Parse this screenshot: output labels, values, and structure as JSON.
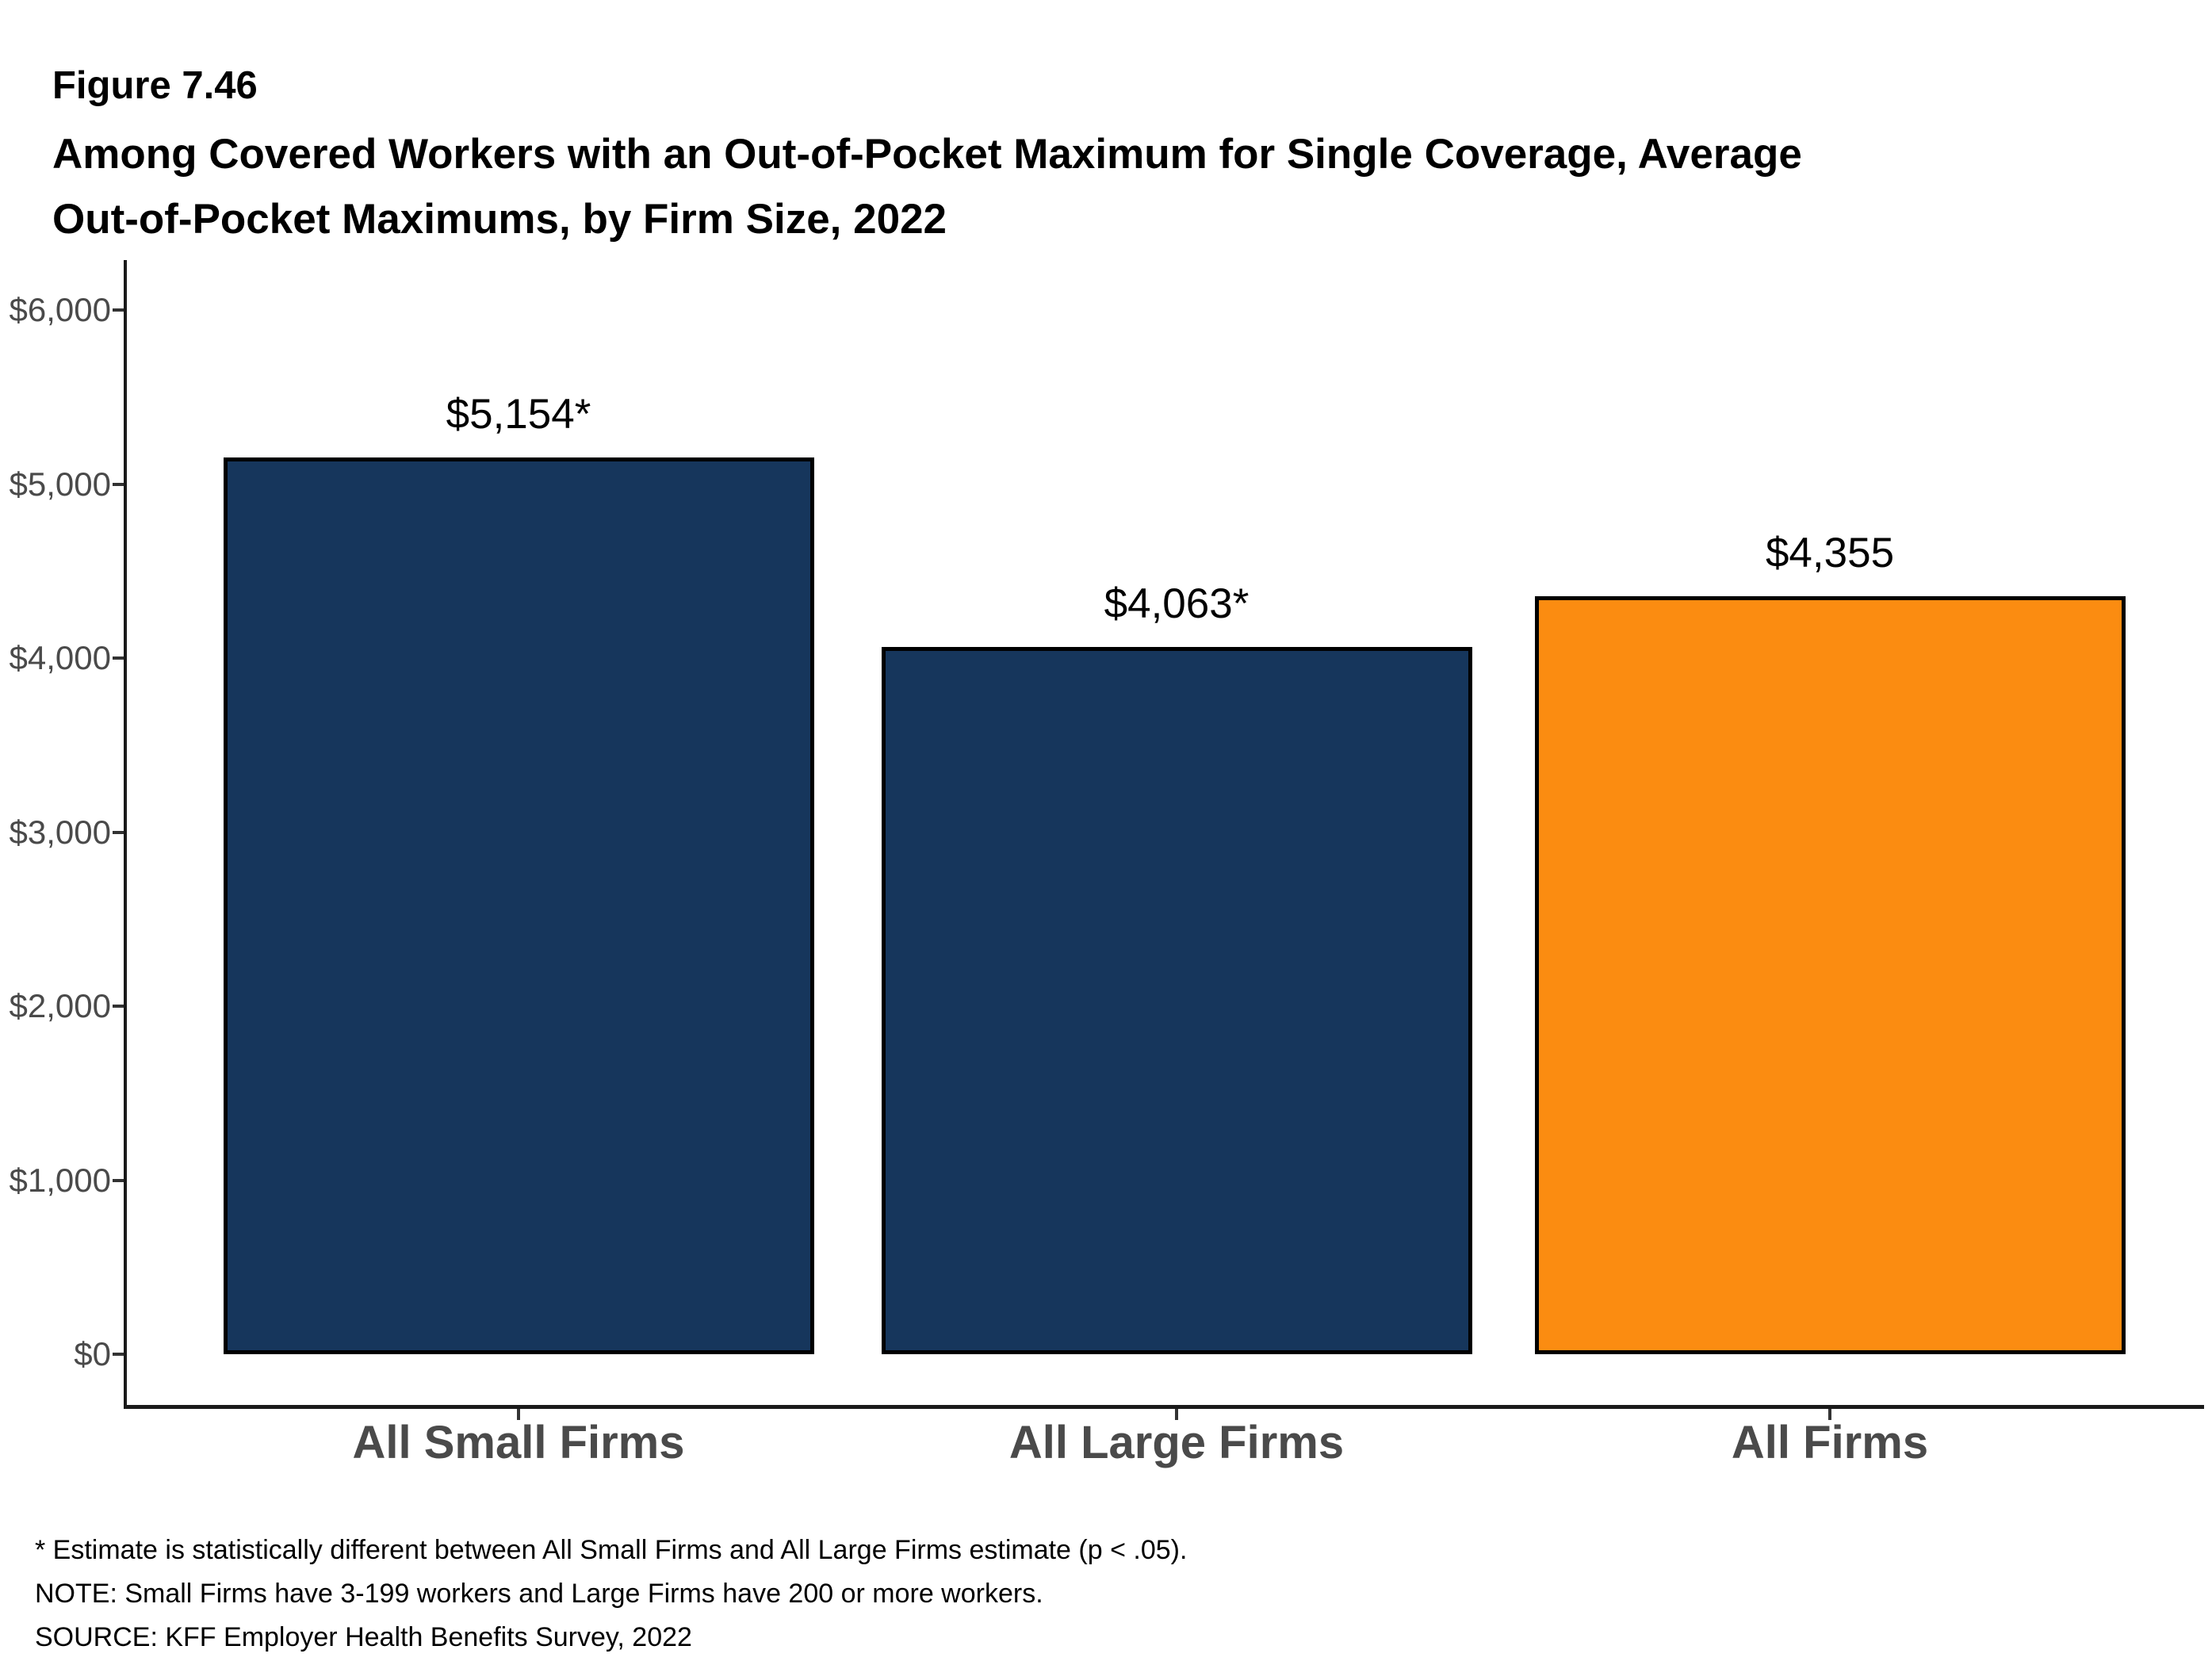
{
  "figure": {
    "number": "Figure 7.46",
    "title_line1": "Among Covered Workers with an Out-of-Pocket Maximum for Single Coverage, Average",
    "title_line2": "Out-of-Pocket Maximums, by Firm Size, 2022"
  },
  "chart_data": {
    "type": "bar",
    "title": "Among Covered Workers with an Out-of-Pocket Maximum for Single Coverage, Average Out-of-Pocket Maximums, by Firm Size, 2022",
    "categories": [
      "All Small Firms",
      "All Large Firms",
      "All Firms"
    ],
    "values": [
      5154,
      4063,
      4355
    ],
    "bar_labels": [
      "$5,154*",
      "$4,063*",
      "$4,355"
    ],
    "bar_colors": [
      "#16365C",
      "#16365C",
      "#FB8C11"
    ],
    "xlabel": "",
    "ylabel": "",
    "ylim": [
      0,
      6000
    ],
    "y_ticks": [
      {
        "value": 0,
        "label": "$0"
      },
      {
        "value": 1000,
        "label": "$1,000"
      },
      {
        "value": 2000,
        "label": "$2,000"
      },
      {
        "value": 3000,
        "label": "$3,000"
      },
      {
        "value": 4000,
        "label": "$4,000"
      },
      {
        "value": 5000,
        "label": "$5,000"
      },
      {
        "value": 6000,
        "label": "$6,000"
      }
    ],
    "grid": "off",
    "legend_position": "none"
  },
  "footnotes": {
    "star": "* Estimate is statistically different between All Small Firms and All Large Firms estimate (p < .05).",
    "note": "NOTE: Small Firms have 3-199 workers and Large Firms have 200 or more workers.",
    "source": "SOURCE: KFF Employer Health Benefits Survey, 2022"
  },
  "colors": {
    "navy": "#16365C",
    "orange": "#FB8C11",
    "axis_text": "#4A4A4A",
    "axis_line": "#1A1A1A",
    "bar_border": "#000000"
  }
}
